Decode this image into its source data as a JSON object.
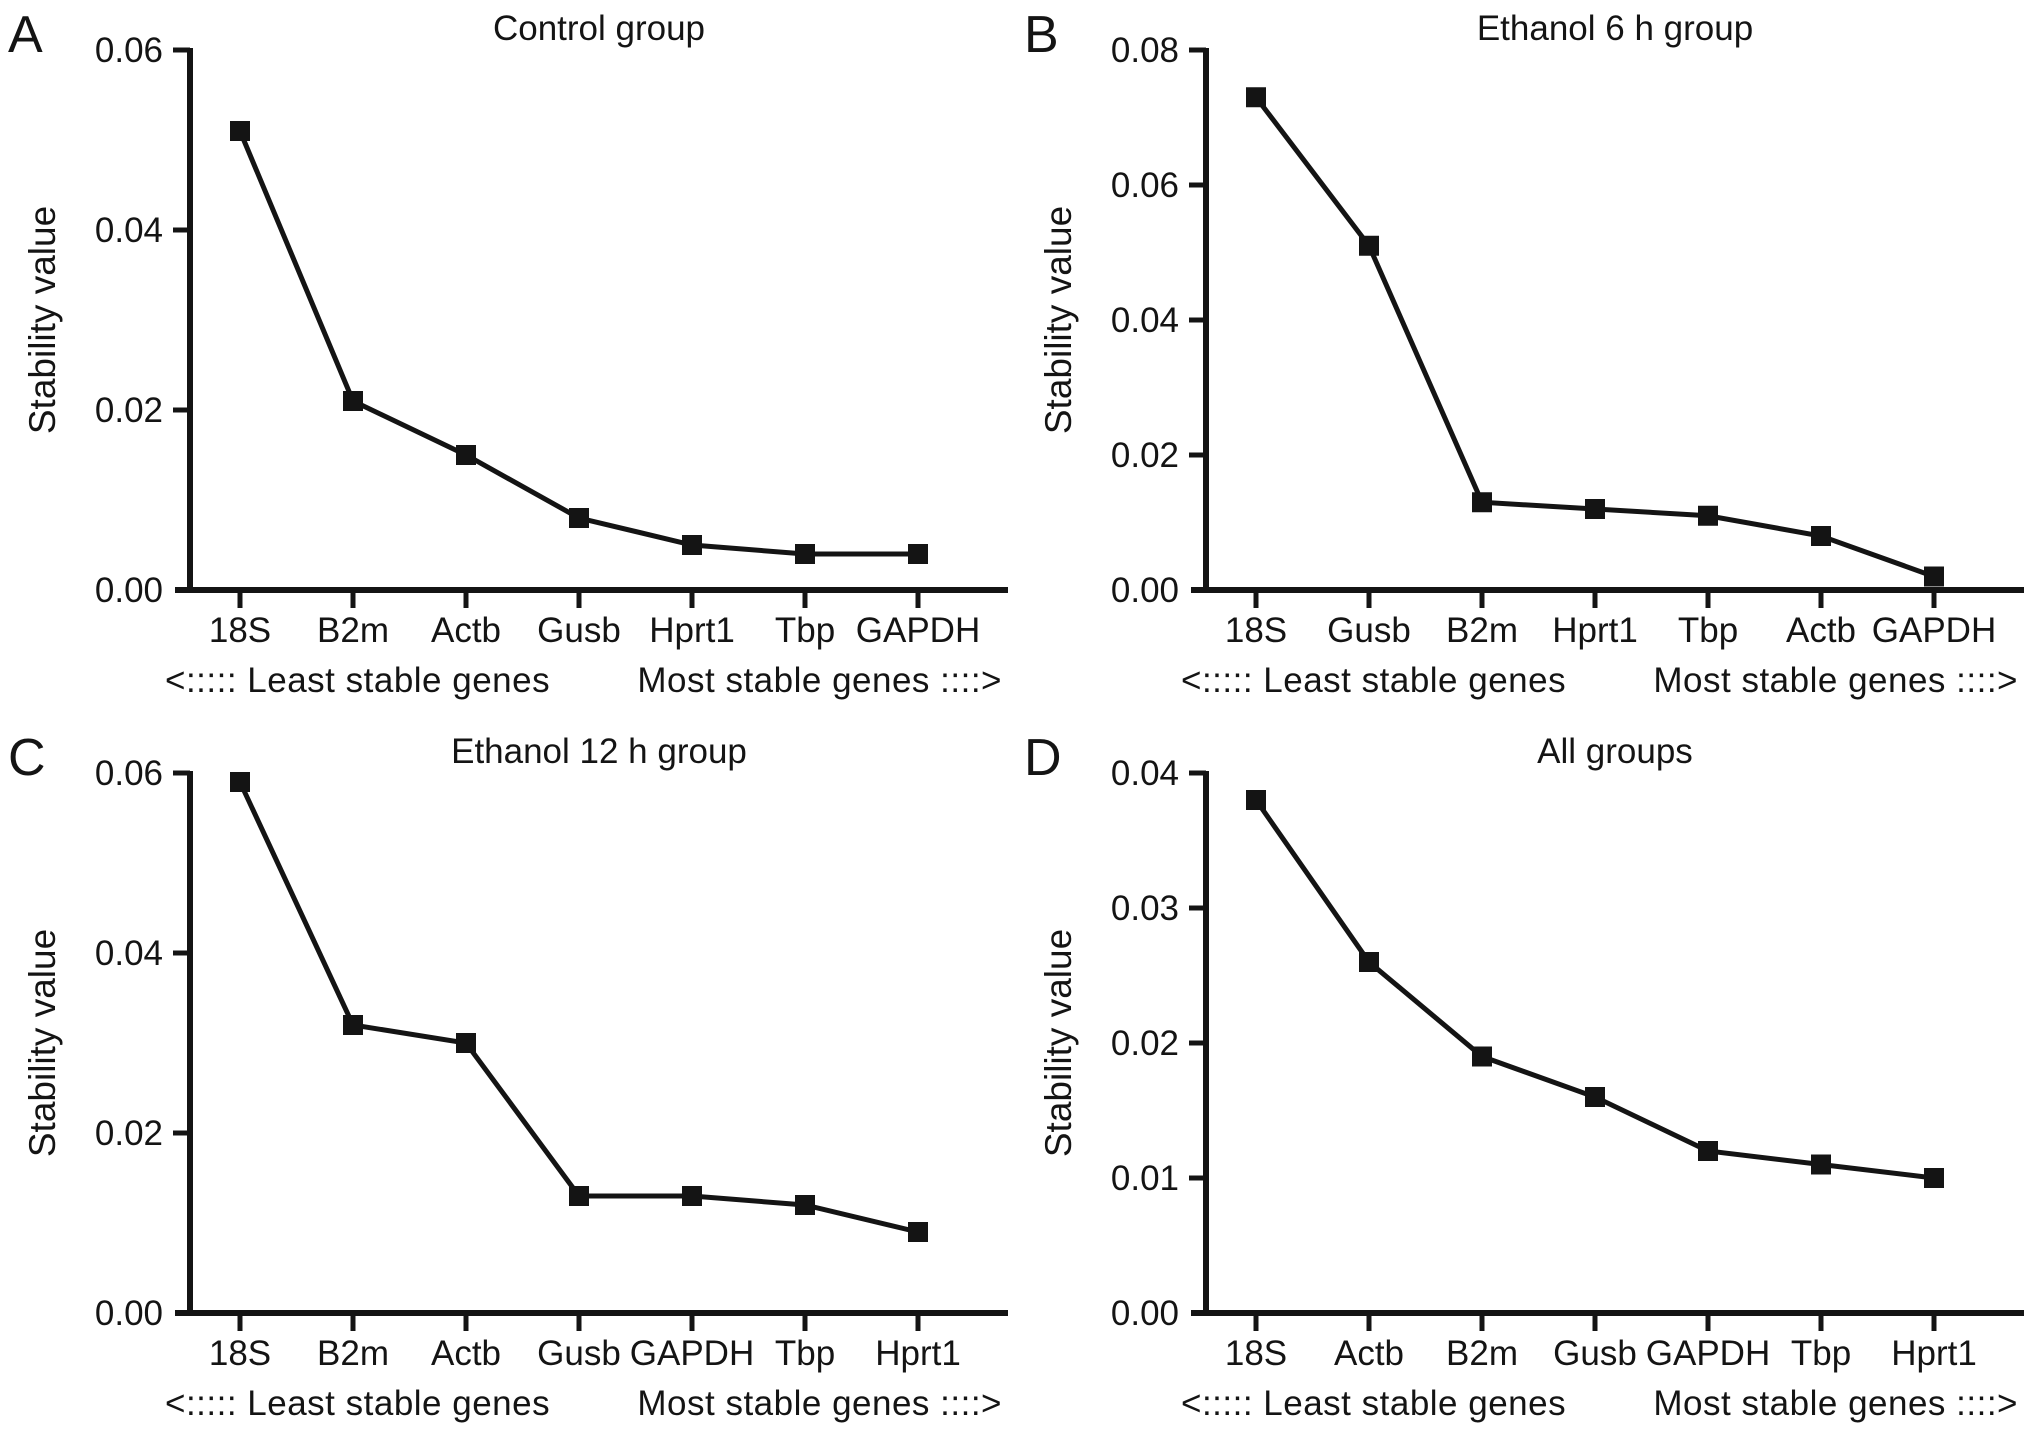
{
  "figure": {
    "background_color": "#ffffff",
    "ink_color": "#141414",
    "footer": {
      "left_arrow": "<:::::",
      "least_label": "Least stable genes",
      "most_label": "Most stable genes",
      "right_arrow": "::::>"
    }
  },
  "chart_data": [
    {
      "panel": "A",
      "type": "line",
      "title": "Control group",
      "ylabel": "Stability value",
      "xlabel": "",
      "categories": [
        "18S",
        "B2m",
        "Actb",
        "Gusb",
        "Hprt1",
        "Tbp",
        "GAPDH"
      ],
      "values": [
        0.051,
        0.021,
        0.015,
        0.008,
        0.005,
        0.004,
        0.004
      ],
      "ylim": [
        0,
        0.06
      ],
      "ytick_values": [
        0,
        0.02,
        0.04,
        0.06
      ],
      "ytick_labels": [
        "0.00",
        "0.02",
        "0.04",
        "0.06"
      ],
      "grid": false,
      "legend": "none",
      "marker": "filled-square"
    },
    {
      "panel": "B",
      "type": "line",
      "title": "Ethanol 6 h group",
      "ylabel": "Stability value",
      "xlabel": "",
      "categories": [
        "18S",
        "Gusb",
        "B2m",
        "Hprt1",
        "Tbp",
        "Actb",
        "GAPDH"
      ],
      "values": [
        0.073,
        0.051,
        0.013,
        0.012,
        0.011,
        0.008,
        0.002
      ],
      "ylim": [
        0,
        0.08
      ],
      "ytick_values": [
        0,
        0.02,
        0.04,
        0.06,
        0.08
      ],
      "ytick_labels": [
        "0.00",
        "0.02",
        "0.04",
        "0.06",
        "0.08"
      ],
      "grid": false,
      "legend": "none",
      "marker": "filled-square"
    },
    {
      "panel": "C",
      "type": "line",
      "title": "Ethanol 12 h group",
      "ylabel": "Stability value",
      "xlabel": "",
      "categories": [
        "18S",
        "B2m",
        "Actb",
        "Gusb",
        "GAPDH",
        "Tbp",
        "Hprt1"
      ],
      "values": [
        0.059,
        0.032,
        0.03,
        0.013,
        0.013,
        0.012,
        0.009
      ],
      "ylim": [
        0,
        0.06
      ],
      "ytick_values": [
        0,
        0.02,
        0.04,
        0.06
      ],
      "ytick_labels": [
        "0.00",
        "0.02",
        "0.04",
        "0.06"
      ],
      "grid": false,
      "legend": "none",
      "marker": "filled-square"
    },
    {
      "panel": "D",
      "type": "line",
      "title": "All groups",
      "ylabel": "Stability value",
      "xlabel": "",
      "categories": [
        "18S",
        "Actb",
        "B2m",
        "Gusb",
        "GAPDH",
        "Tbp",
        "Hprt1"
      ],
      "values": [
        0.038,
        0.026,
        0.019,
        0.016,
        0.012,
        0.011,
        0.01
      ],
      "ylim": [
        0,
        0.04
      ],
      "ytick_values": [
        0,
        0.01,
        0.02,
        0.03,
        0.04
      ],
      "ytick_labels": [
        "0.00",
        "0.01",
        "0.02",
        "0.03",
        "0.04"
      ],
      "grid": false,
      "legend": "none",
      "marker": "filled-square"
    }
  ]
}
